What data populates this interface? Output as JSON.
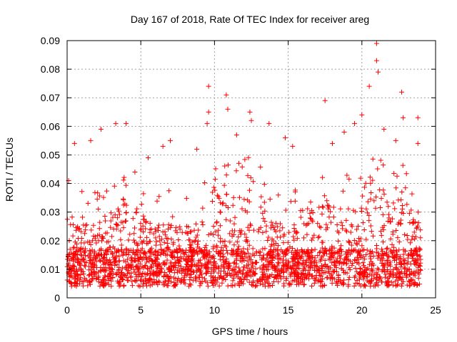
{
  "chart_data": {
    "type": "scatter",
    "title": "Day 167 of 2018, Rate Of TEC Index for receiver areg",
    "xlabel": "GPS time / hours",
    "ylabel": "ROTI / TECUs",
    "xlim": [
      0,
      25
    ],
    "ylim": [
      0,
      0.09
    ],
    "x_ticks": [
      0,
      5,
      10,
      15,
      20,
      25
    ],
    "x_tick_labels": [
      "0",
      "5",
      "10",
      "15",
      "20",
      "25"
    ],
    "y_ticks": [
      0,
      0.01,
      0.02,
      0.03,
      0.04,
      0.05,
      0.06,
      0.07,
      0.08,
      0.09
    ],
    "y_tick_labels": [
      "0",
      "0.01",
      "0.02",
      "0.03",
      "0.04",
      "0.05",
      "0.06",
      "0.07",
      "0.08",
      "0.09"
    ],
    "grid": true,
    "marker": "+",
    "color": "#ff0000",
    "series": [
      {
        "name": "ROTI",
        "x_range": [
          0,
          24
        ],
        "baseline_typical": 0.01,
        "typical_upper": 0.03,
        "notable_peaks": [
          {
            "x": 0.1,
            "y": 0.041
          },
          {
            "x": 0.5,
            "y": 0.054
          },
          {
            "x": 1.6,
            "y": 0.055
          },
          {
            "x": 2.3,
            "y": 0.059
          },
          {
            "x": 3.3,
            "y": 0.061
          },
          {
            "x": 4.0,
            "y": 0.061
          },
          {
            "x": 4.6,
            "y": 0.044
          },
          {
            "x": 5.5,
            "y": 0.049
          },
          {
            "x": 6.5,
            "y": 0.053
          },
          {
            "x": 7.0,
            "y": 0.055
          },
          {
            "x": 8.8,
            "y": 0.052
          },
          {
            "x": 9.6,
            "y": 0.074
          },
          {
            "x": 9.6,
            "y": 0.065
          },
          {
            "x": 9.5,
            "y": 0.061
          },
          {
            "x": 10.8,
            "y": 0.071
          },
          {
            "x": 10.9,
            "y": 0.066
          },
          {
            "x": 11.5,
            "y": 0.057
          },
          {
            "x": 12.4,
            "y": 0.065
          },
          {
            "x": 12.5,
            "y": 0.062
          },
          {
            "x": 13.7,
            "y": 0.061
          },
          {
            "x": 14.8,
            "y": 0.056
          },
          {
            "x": 15.3,
            "y": 0.053
          },
          {
            "x": 17.5,
            "y": 0.069
          },
          {
            "x": 18.0,
            "y": 0.054
          },
          {
            "x": 18.8,
            "y": 0.058
          },
          {
            "x": 19.5,
            "y": 0.061
          },
          {
            "x": 20.0,
            "y": 0.064
          },
          {
            "x": 20.5,
            "y": 0.074
          },
          {
            "x": 21.0,
            "y": 0.089
          },
          {
            "x": 21.0,
            "y": 0.083
          },
          {
            "x": 21.1,
            "y": 0.079
          },
          {
            "x": 21.5,
            "y": 0.059
          },
          {
            "x": 22.3,
            "y": 0.055
          },
          {
            "x": 22.7,
            "y": 0.072
          },
          {
            "x": 22.8,
            "y": 0.063
          },
          {
            "x": 23.8,
            "y": 0.063
          },
          {
            "x": 23.8,
            "y": 0.054
          }
        ]
      }
    ]
  }
}
